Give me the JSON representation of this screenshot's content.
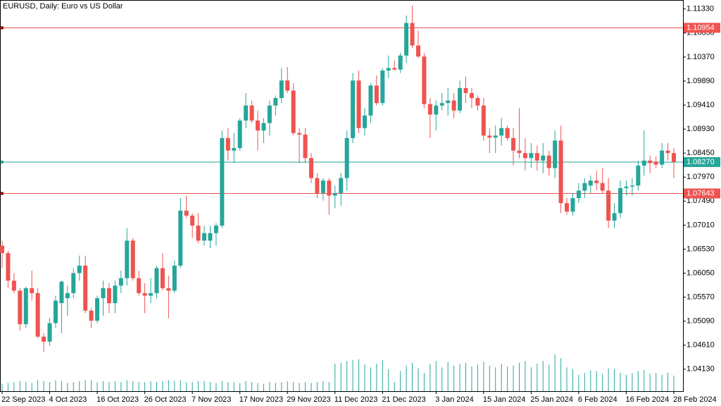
{
  "chart_data": {
    "type": "candlestick",
    "title": "EURUSD, Daily:  Euro vs US Dollar",
    "up_color": "#26a69a",
    "down_color": "#ef5350",
    "volume_color": "#26a69a",
    "ylim": [
      1.0369,
      1.1151
    ],
    "yticks": [
      {
        "value": 1.1133,
        "label": "1.11330"
      },
      {
        "value": 1.1085,
        "label": "1.10850"
      },
      {
        "value": 1.1037,
        "label": "1.10370"
      },
      {
        "value": 1.0989,
        "label": "1.09890"
      },
      {
        "value": 1.0941,
        "label": "1.09410"
      },
      {
        "value": 1.0893,
        "label": "1.08930"
      },
      {
        "value": 1.0845,
        "label": "1.08450"
      },
      {
        "value": 1.0797,
        "label": "1.07970"
      },
      {
        "value": 1.0749,
        "label": "1.07490"
      },
      {
        "value": 1.0701,
        "label": "1.07010"
      },
      {
        "value": 1.0653,
        "label": "1.06530"
      },
      {
        "value": 1.0605,
        "label": "1.06050"
      },
      {
        "value": 1.0557,
        "label": "1.05570"
      },
      {
        "value": 1.0509,
        "label": "1.05090"
      },
      {
        "value": 1.0461,
        "label": "1.04610"
      },
      {
        "value": 1.0413,
        "label": "1.04130"
      }
    ],
    "price_lines": [
      {
        "value": 1.10954,
        "color": "#ef5350"
      },
      {
        "value": 1.0827,
        "label": "1.08270",
        "color": "#26a69a"
      },
      {
        "value": 1.07643,
        "color": "#ef5350"
      }
    ],
    "categories": [
      "22 Sep 2023",
      null,
      null,
      null,
      null,
      null,
      null,
      null,
      "4 Oct 2023",
      null,
      null,
      null,
      null,
      null,
      null,
      null,
      "16 Oct 2023",
      null,
      null,
      null,
      null,
      null,
      null,
      null,
      "26 Oct 2023",
      null,
      null,
      null,
      null,
      null,
      null,
      null,
      "7 Nov 2023",
      null,
      null,
      null,
      null,
      null,
      null,
      null,
      "17 Nov 2023",
      null,
      null,
      null,
      null,
      null,
      null,
      null,
      "29 Nov 2023",
      null,
      null,
      null,
      null,
      null,
      null,
      null,
      "11 Dec 2023",
      null,
      null,
      null,
      null,
      null,
      null,
      null,
      "21 Dec 2023",
      null,
      null,
      null,
      null,
      null,
      null,
      null,
      null,
      "3 Jan 2024",
      null,
      null,
      null,
      null,
      null,
      null,
      null,
      "15 Jan 2024",
      null,
      null,
      null,
      null,
      null,
      null,
      null,
      "25 Jan 2024",
      null,
      null,
      null,
      null,
      null,
      null,
      null,
      "6 Feb 2024",
      null,
      null,
      null,
      null,
      null,
      null,
      null,
      "16 Feb 2024",
      null,
      null,
      null,
      null,
      null,
      null,
      null,
      "28 Feb 2024"
    ],
    "open": [
      1.066,
      1.0645,
      1.059,
      1.057,
      1.0503,
      1.0575,
      1.0565,
      1.0478,
      1.0468,
      1.0505,
      1.0545,
      1.0555,
      1.0565,
      1.0605,
      1.062,
      1.053,
      1.051,
      1.0555,
      1.0575,
      1.0545,
      1.058,
      1.0595,
      1.067,
      1.0595,
      1.0565,
      1.056,
      1.0565,
      1.0615,
      1.0575,
      1.057,
      1.062,
      1.073,
      1.072,
      1.07,
      1.067,
      1.067,
      1.0685,
      1.07,
      1.0875,
      1.085,
      1.0855,
      1.091,
      1.094,
      1.091,
      1.089,
      1.0905,
      1.094,
      1.0955,
      1.099,
      1.097,
      1.0885,
      1.0882,
      1.0835,
      1.0795,
      1.0765,
      1.079,
      1.076,
      1.0765,
      1.0795,
      1.0875,
      1.099,
      1.0895,
      1.092,
      1.098,
      1.0945,
      1.101,
      1.1015,
      1.1012,
      1.104,
      1.1105,
      1.106,
      1.1038,
      1.0943,
      1.0922,
      1.094,
      1.0945,
      1.095,
      1.093,
      1.0975,
      1.0965,
      1.0955,
      1.094,
      1.088,
      1.0876,
      1.088,
      1.0895,
      1.0875,
      1.085,
      1.0845,
      1.0835,
      1.0845,
      1.083,
      1.084,
      1.0815,
      1.087,
      1.0745,
      1.0728,
      1.0755,
      1.077,
      1.078,
      1.079,
      1.0785,
      1.077,
      1.071,
      1.0725,
      1.0775,
      1.0778,
      1.078,
      1.082,
      1.083,
      1.0828,
      1.0822,
      1.085,
      1.0845
    ],
    "high": [
      1.067,
      1.065,
      1.0605,
      1.0575,
      1.0578,
      1.061,
      1.0575,
      1.0485,
      1.0515,
      1.056,
      1.059,
      1.058,
      1.0615,
      1.064,
      1.064,
      1.0535,
      1.056,
      1.059,
      1.0585,
      1.059,
      1.061,
      1.0695,
      1.0675,
      1.061,
      1.0585,
      1.0595,
      1.062,
      1.0645,
      1.06,
      1.063,
      1.0755,
      1.076,
      1.0725,
      1.0725,
      1.07,
      1.07,
      1.0705,
      1.089,
      1.0895,
      1.0885,
      1.0915,
      1.0965,
      1.095,
      1.093,
      1.0915,
      1.095,
      1.096,
      1.1015,
      1.1017,
      1.0985,
      1.0895,
      1.0895,
      1.0845,
      1.0805,
      1.0795,
      1.0795,
      1.078,
      1.0805,
      1.089,
      1.1005,
      1.101,
      1.0935,
      1.0985,
      1.1,
      1.1015,
      1.104,
      1.103,
      1.1045,
      1.112,
      1.114,
      1.109,
      1.1045,
      1.0955,
      1.095,
      1.0965,
      1.0975,
      1.0965,
      1.099,
      1.0998,
      1.0975,
      1.096,
      1.0955,
      1.0895,
      1.09,
      1.0915,
      1.09,
      1.0895,
      1.0935,
      1.0875,
      1.0865,
      1.086,
      1.0865,
      1.085,
      1.089,
      1.09,
      1.0755,
      1.0765,
      1.0785,
      1.0795,
      1.08,
      1.081,
      1.0815,
      1.0795,
      1.0745,
      1.079,
      1.079,
      1.0795,
      1.083,
      1.089,
      1.084,
      1.0838,
      1.0865,
      1.0865,
      1.0855
    ],
    "low": [
      1.0615,
      1.0575,
      1.0565,
      1.049,
      1.0495,
      1.055,
      1.0475,
      1.0448,
      1.046,
      1.0495,
      1.0485,
      1.052,
      1.0555,
      1.059,
      1.0525,
      1.0495,
      1.0505,
      1.052,
      1.0525,
      1.0525,
      1.0565,
      1.058,
      1.059,
      1.056,
      1.0525,
      1.0545,
      1.0555,
      1.057,
      1.0515,
      1.0565,
      1.0615,
      1.0715,
      1.0675,
      1.0665,
      1.066,
      1.0655,
      1.066,
      1.0695,
      1.083,
      1.0825,
      1.085,
      1.0895,
      1.0905,
      1.085,
      1.0865,
      1.088,
      1.092,
      1.0945,
      1.0965,
      1.088,
      1.0825,
      1.0825,
      1.0785,
      1.0755,
      1.075,
      1.0722,
      1.0735,
      1.074,
      1.077,
      1.0865,
      1.0885,
      1.088,
      1.0905,
      1.094,
      1.094,
      1.0995,
      1.101,
      1.1005,
      1.1025,
      1.1055,
      1.1035,
      1.0935,
      1.0875,
      1.089,
      1.093,
      1.092,
      1.0915,
      1.0925,
      1.0945,
      1.0935,
      1.093,
      1.087,
      1.0845,
      1.0845,
      1.086,
      1.087,
      1.082,
      1.0835,
      1.081,
      1.0815,
      1.081,
      1.0805,
      1.08,
      1.0795,
      1.0725,
      1.0722,
      1.072,
      1.0745,
      1.0755,
      1.0765,
      1.077,
      1.0765,
      1.0695,
      1.0695,
      1.0715,
      1.076,
      1.076,
      1.077,
      1.08,
      1.0805,
      1.0815,
      1.0815,
      1.083,
      1.0795
    ],
    "close": [
      1.0645,
      1.059,
      1.057,
      1.0503,
      1.0575,
      1.0565,
      1.0478,
      1.0468,
      1.0505,
      1.055,
      1.0588,
      1.0565,
      1.0605,
      1.062,
      1.053,
      1.051,
      1.0555,
      1.0575,
      1.0545,
      1.058,
      1.0595,
      1.067,
      1.0595,
      1.0565,
      1.056,
      1.0565,
      1.0615,
      1.0575,
      1.057,
      1.062,
      1.073,
      1.072,
      1.07,
      1.067,
      1.0685,
      1.0685,
      1.07,
      1.0875,
      1.085,
      1.0855,
      1.091,
      1.094,
      1.091,
      1.089,
      1.0905,
      1.094,
      1.0955,
      1.099,
      1.097,
      1.0885,
      1.0882,
      1.0835,
      1.0795,
      1.0765,
      1.079,
      1.076,
      1.0765,
      1.0795,
      1.0875,
      1.099,
      1.0895,
      1.092,
      1.098,
      1.0945,
      1.101,
      1.1015,
      1.1012,
      1.104,
      1.1105,
      1.106,
      1.1038,
      1.0943,
      1.0922,
      1.094,
      1.0945,
      1.095,
      1.093,
      1.0975,
      1.0965,
      1.0955,
      1.094,
      1.088,
      1.0876,
      1.088,
      1.0895,
      1.0875,
      1.085,
      1.0845,
      1.0835,
      1.0845,
      1.083,
      1.084,
      1.0815,
      1.087,
      1.0745,
      1.0728,
      1.0755,
      1.077,
      1.0785,
      1.079,
      1.0785,
      1.077,
      1.071,
      1.0725,
      1.0775,
      1.0778,
      1.078,
      1.082,
      1.083,
      1.0825,
      1.0822,
      1.085,
      1.0845,
      1.0827
    ],
    "volumes": [
      8,
      9,
      10,
      11,
      10,
      9,
      12,
      11,
      10,
      12,
      11,
      9,
      10,
      11,
      12,
      12,
      10,
      11,
      10,
      11,
      10,
      12,
      11,
      10,
      10,
      11,
      10,
      11,
      12,
      11,
      12,
      10,
      10,
      11,
      11,
      10,
      9,
      11,
      10,
      10,
      9,
      11,
      10,
      9,
      8,
      10,
      9,
      10,
      11,
      10,
      9,
      10,
      9,
      10,
      11,
      10,
      30,
      31,
      33,
      34,
      35,
      29,
      26,
      30,
      34,
      24,
      10,
      22,
      28,
      31,
      25,
      20,
      30,
      33,
      26,
      32,
      28,
      30,
      31,
      27,
      29,
      32,
      28,
      26,
      30,
      27,
      28,
      31,
      33,
      26,
      30,
      33,
      29,
      40,
      36,
      26,
      24,
      18,
      20,
      23,
      22,
      19,
      25,
      24,
      20,
      18,
      20,
      22,
      23,
      19,
      20,
      18,
      20,
      17
    ]
  }
}
